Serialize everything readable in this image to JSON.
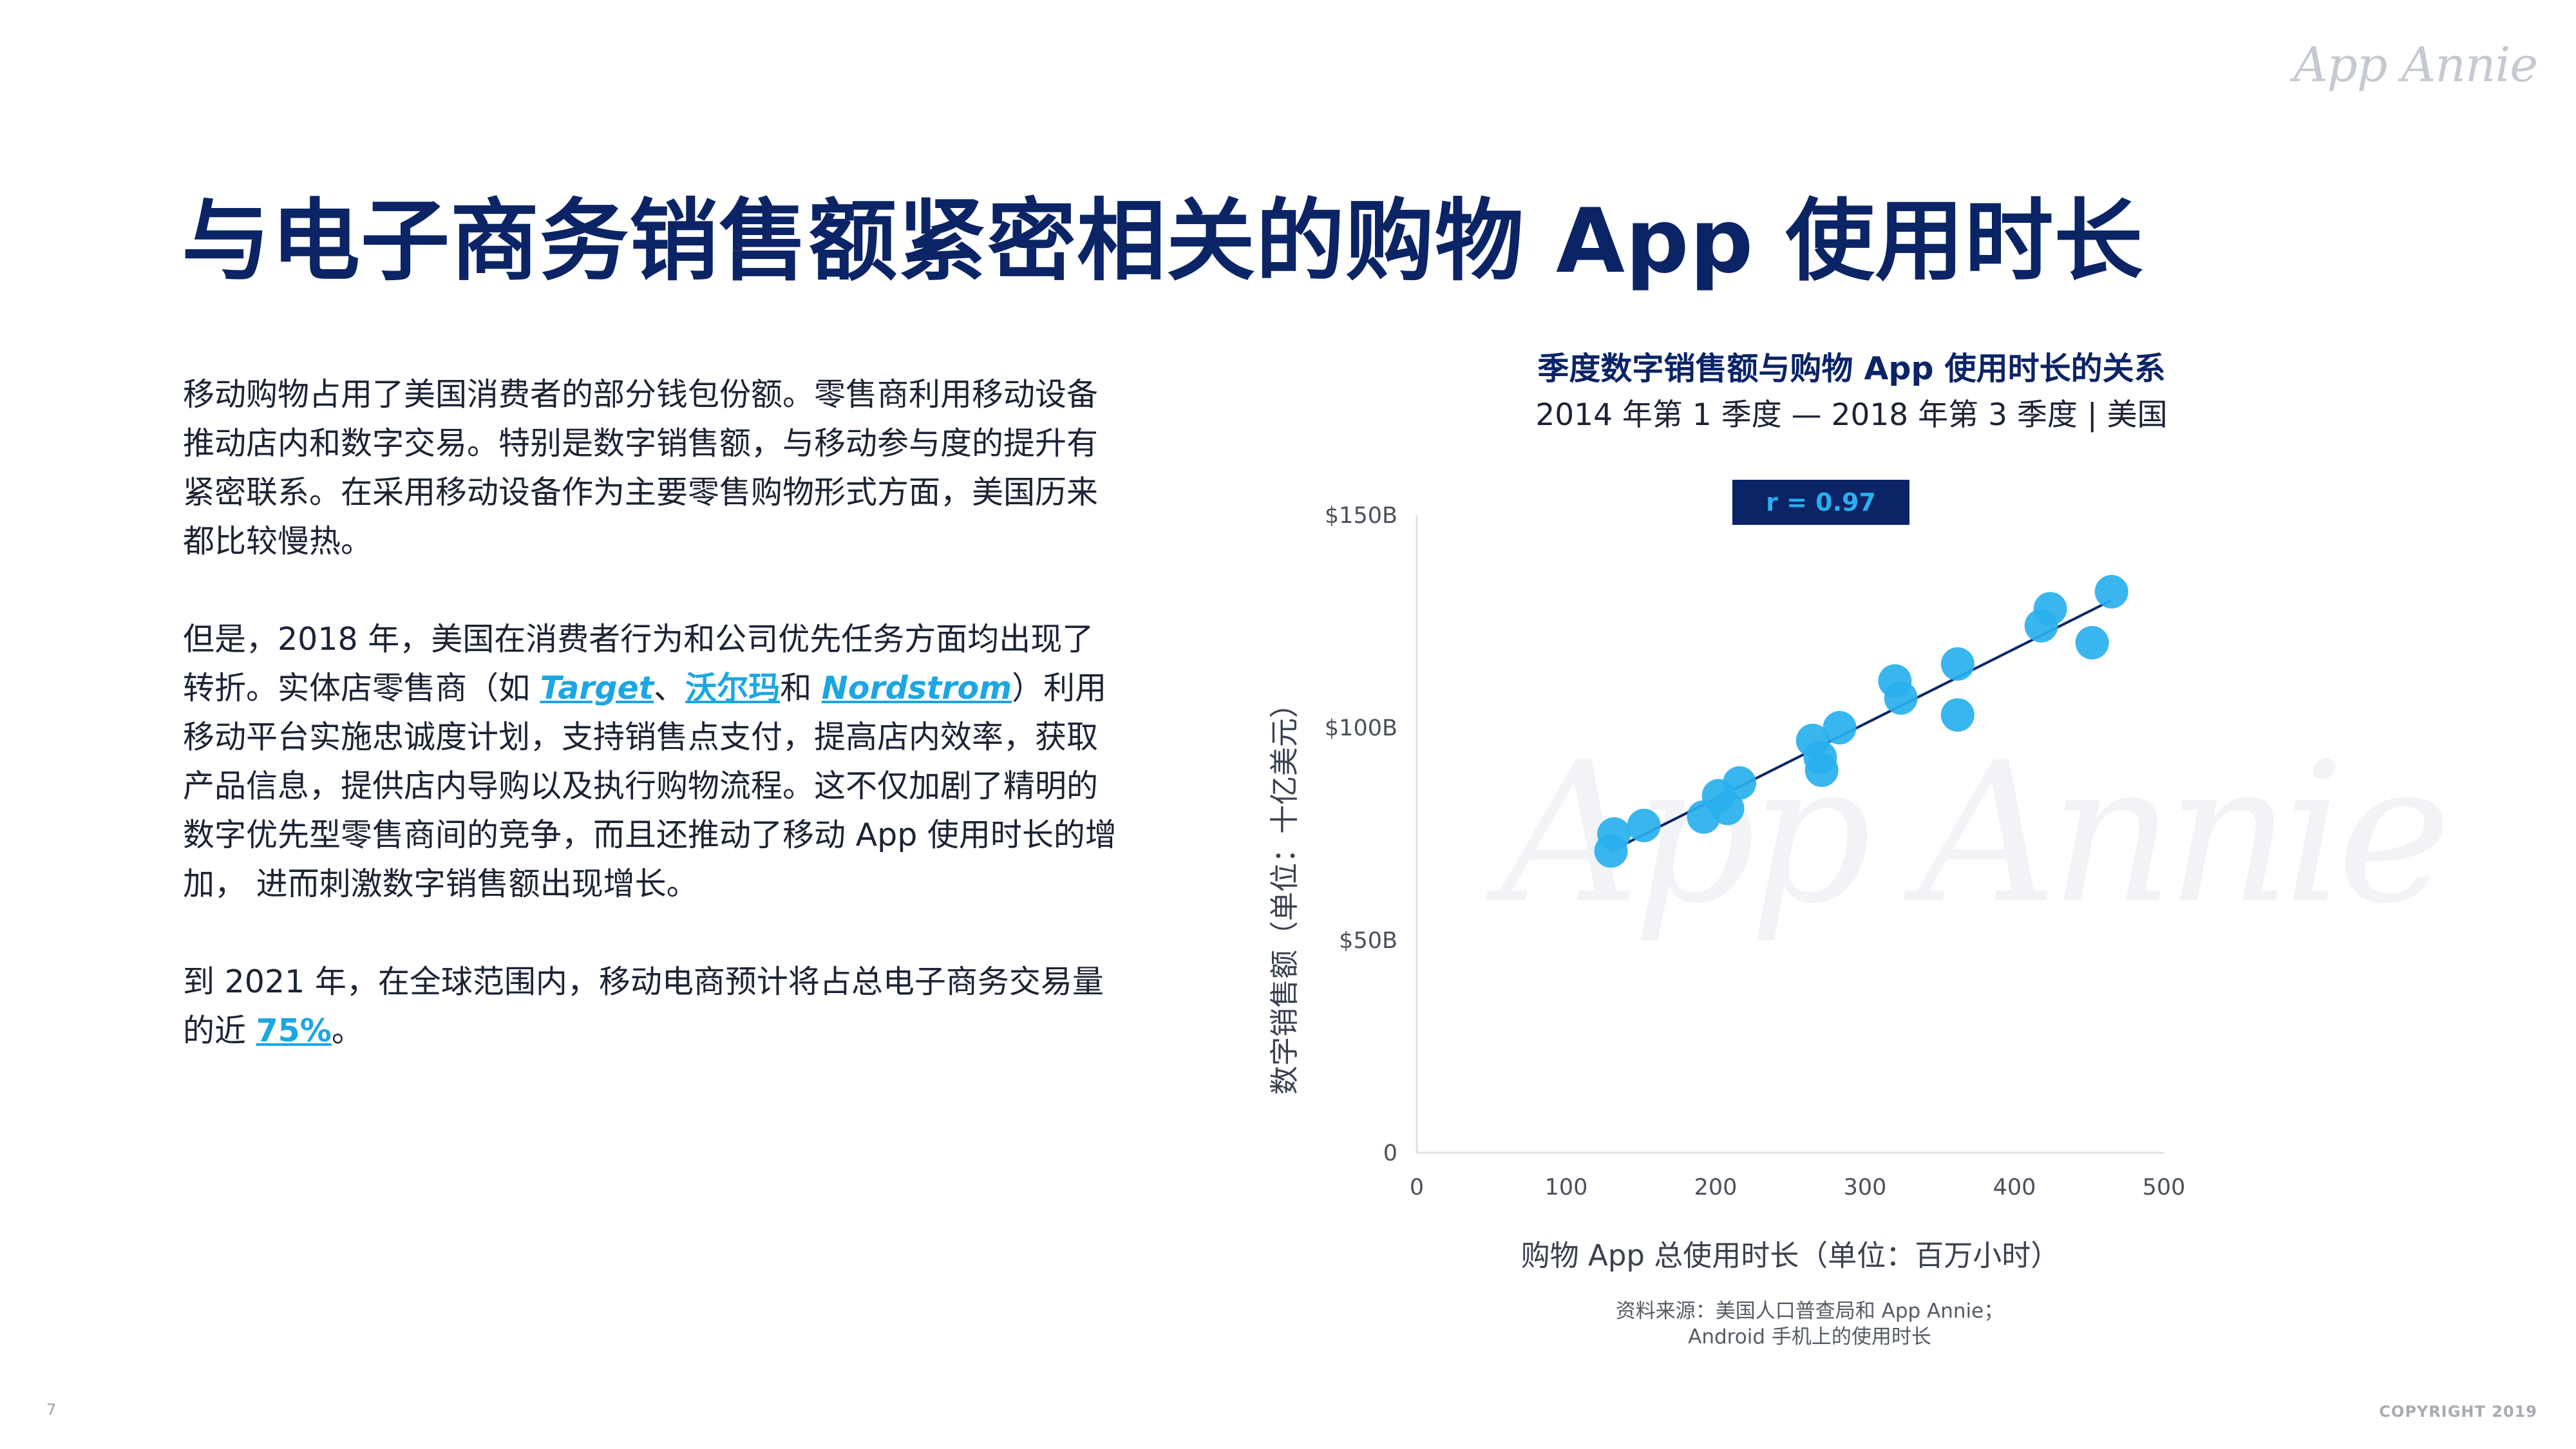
{
  "brand": {
    "logo_text": "App Annie",
    "watermark_text": "App Annie"
  },
  "page": {
    "title": "与电子商务销售额紧密相关的购物 App 使用时长",
    "page_number": "7",
    "copyright": "COPYRIGHT 2019"
  },
  "body": {
    "p1": "移动购物占用了美国消费者的部分钱包份额。零售商利用移动设备推动店内和数字交易。特别是数字销售额，与移动参与度的提升有紧密联系。在采用移动设备作为主要零售购物形式方面，美国历来都比较慢热。",
    "p2_a": "但是，2018 年，美国在消费者行为和公司优先任务方面均出现了转折。实体店零售商（如 ",
    "p2_link1": "Target",
    "p2_sep": "、",
    "p2_link2": "沃尔玛",
    "p2_and": "和 ",
    "p2_link3": "Nordstrom",
    "p2_b": "）利用移动平台实施忠诚度计划，支持销售点支付，提高店内效率，获取产品信息，提供店内导购以及执行购物流程。这不仅加剧了精明的数字优先型零售商间的竞争，而且还推动了移动 App 使用时长的增加， 进而刺激数字销售额出现增长。",
    "p3_a": "到 2021 年，在全球范围内，移动电商预计将占总电子商务交易量的近 ",
    "p3_link": "75%",
    "p3_b": "。"
  },
  "colors": {
    "title": "#0b2466",
    "accent": "#29b0ee",
    "link": "#1ca6e3",
    "badge_bg": "#0b2466",
    "point": "#29b0ee",
    "trendline": "#0b2466"
  },
  "chart_data": {
    "type": "scatter",
    "title": "季度数字销售额与购物 App 使用时长的关系",
    "subtitle": "2014 年第 1 季度 — 2018 年第 3 季度 | 美国",
    "annotation": "r = 0.97",
    "xlabel": "购物 App 总使用时长（单位：百万小时）",
    "ylabel": "数字销售额（单位：十亿美元）",
    "xlim": [
      0,
      500
    ],
    "ylim": [
      0,
      150
    ],
    "x_ticks": [
      "0",
      "100",
      "200",
      "300",
      "400",
      "500"
    ],
    "y_ticks": [
      "0",
      "$50B",
      "$100B",
      "$150B"
    ],
    "grid": false,
    "trendline": {
      "x": [
        130,
        465
      ],
      "y": [
        71,
        130
      ]
    },
    "points": [
      {
        "x": 130,
        "y": 71
      },
      {
        "x": 132,
        "y": 75
      },
      {
        "x": 152,
        "y": 77
      },
      {
        "x": 192,
        "y": 79
      },
      {
        "x": 202,
        "y": 84
      },
      {
        "x": 208,
        "y": 81
      },
      {
        "x": 216,
        "y": 87
      },
      {
        "x": 265,
        "y": 97
      },
      {
        "x": 270,
        "y": 93
      },
      {
        "x": 271,
        "y": 90
      },
      {
        "x": 283,
        "y": 100
      },
      {
        "x": 320,
        "y": 111
      },
      {
        "x": 324,
        "y": 107
      },
      {
        "x": 362,
        "y": 115
      },
      {
        "x": 362,
        "y": 103
      },
      {
        "x": 418,
        "y": 124
      },
      {
        "x": 424,
        "y": 128
      },
      {
        "x": 452,
        "y": 120
      },
      {
        "x": 465,
        "y": 132
      }
    ]
  },
  "source": {
    "line1": "资料来源：美国人口普查局和 App Annie；",
    "line2": "Android 手机上的使用时长"
  }
}
